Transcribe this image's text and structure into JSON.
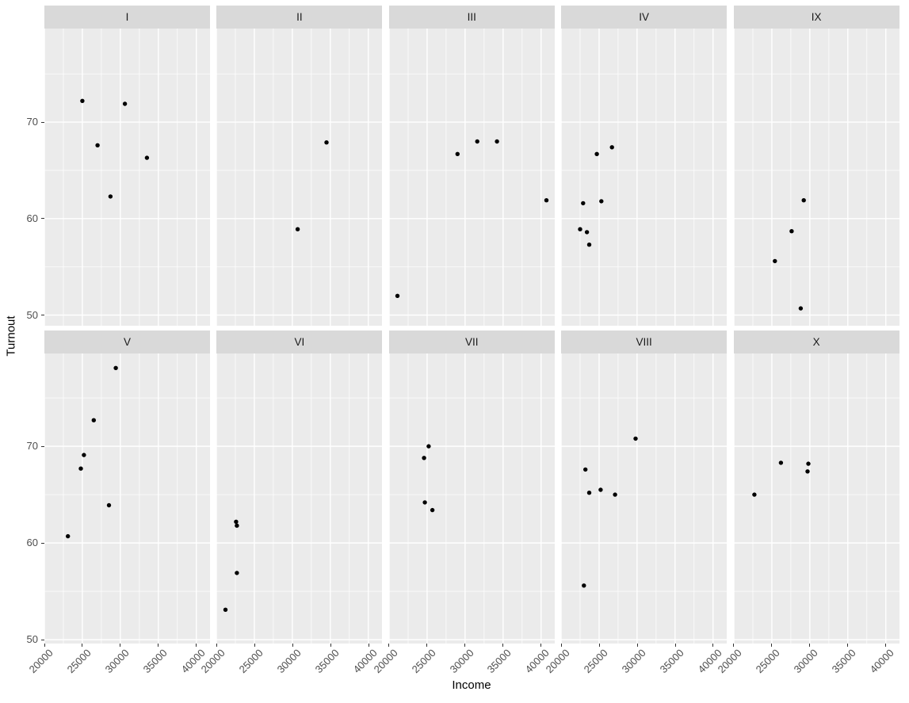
{
  "figure": {
    "x_axis_title": "Income",
    "y_axis_title": "Turnout",
    "x_tick_labels": [
      "20000",
      "25000",
      "30000",
      "35000",
      "40000"
    ],
    "y_tick_labels": [
      "50",
      "60",
      "70"
    ]
  },
  "style": {
    "panel_bg": "#EBEBEB",
    "strip_bg": "#D9D9D9",
    "grid_color": "#FFFFFF",
    "point_color": "#000000",
    "axis_text_color": "#4D4D4D",
    "strip_text_color": "#1A1A1A",
    "axis_title_color": "#000000"
  },
  "chart_data": {
    "type": "scatter",
    "title": "",
    "xlabel": "Income",
    "ylabel": "Turnout",
    "xlim": [
      20000,
      41800
    ],
    "ylim": [
      49,
      80
    ],
    "x_major_ticks": [
      20000,
      25000,
      30000,
      35000,
      40000
    ],
    "x_minor_ticks": [
      22500,
      27500,
      32500,
      37500
    ],
    "y_major_ticks": [
      50,
      60,
      70
    ],
    "y_minor_ticks": [
      55,
      65,
      75
    ],
    "grid": true,
    "legend": "none",
    "facet_layout": {
      "rows": 2,
      "cols": 5,
      "order": [
        "I",
        "II",
        "III",
        "IV",
        "IX",
        "V",
        "VI",
        "VII",
        "VIII",
        "X"
      ]
    },
    "facets": [
      {
        "label": "I",
        "points": [
          [
            25000,
            72.2
          ],
          [
            27000,
            67.6
          ],
          [
            28700,
            62.3
          ],
          [
            30600,
            71.9
          ],
          [
            33500,
            66.3
          ]
        ]
      },
      {
        "label": "II",
        "points": [
          [
            30700,
            58.9
          ],
          [
            34500,
            67.9
          ]
        ]
      },
      {
        "label": "III",
        "points": [
          [
            21100,
            52.0
          ],
          [
            29000,
            66.7
          ],
          [
            31600,
            68.0
          ],
          [
            34200,
            68.0
          ],
          [
            40700,
            61.9
          ]
        ]
      },
      {
        "label": "IV",
        "points": [
          [
            22500,
            58.9
          ],
          [
            22900,
            61.6
          ],
          [
            23400,
            58.6
          ],
          [
            23700,
            57.3
          ],
          [
            24700,
            66.7
          ],
          [
            25300,
            61.8
          ],
          [
            26700,
            67.4
          ]
        ]
      },
      {
        "label": "IX",
        "points": [
          [
            25400,
            55.6
          ],
          [
            27600,
            58.7
          ],
          [
            28800,
            50.7
          ],
          [
            29200,
            61.9
          ]
        ]
      },
      {
        "label": "V",
        "points": [
          [
            23100,
            60.7
          ],
          [
            24800,
            67.7
          ],
          [
            25200,
            69.1
          ],
          [
            26500,
            72.7
          ],
          [
            28500,
            63.9
          ],
          [
            29400,
            78.1
          ]
        ]
      },
      {
        "label": "VI",
        "points": [
          [
            21200,
            53.1
          ],
          [
            22600,
            62.2
          ],
          [
            22700,
            61.8
          ],
          [
            22700,
            56.9
          ]
        ]
      },
      {
        "label": "VII",
        "points": [
          [
            24600,
            68.8
          ],
          [
            24700,
            64.2
          ],
          [
            25200,
            70.0
          ],
          [
            25700,
            63.4
          ]
        ]
      },
      {
        "label": "VIII",
        "points": [
          [
            23000,
            55.6
          ],
          [
            23200,
            67.6
          ],
          [
            23700,
            65.2
          ],
          [
            25200,
            65.5
          ],
          [
            27100,
            65.0
          ],
          [
            29800,
            70.8
          ]
        ]
      },
      {
        "label": "X",
        "points": [
          [
            22700,
            65.0
          ],
          [
            26200,
            68.3
          ],
          [
            29700,
            67.4
          ],
          [
            29800,
            68.2
          ]
        ]
      }
    ]
  }
}
